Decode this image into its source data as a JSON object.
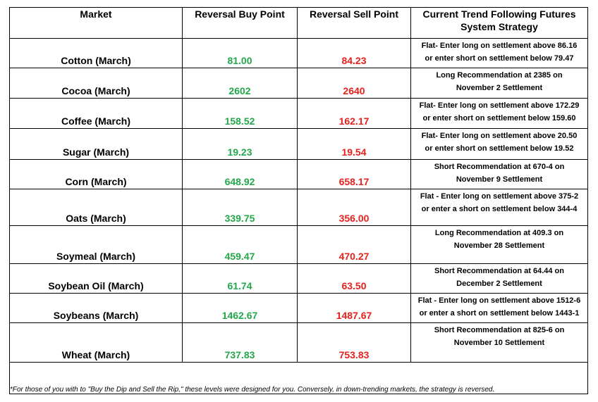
{
  "headers": {
    "market": "Market",
    "buy": "Reversal Buy Point",
    "sell": "Reversal Sell Point",
    "strategy_line1": "Current Trend Following Futures",
    "strategy_line2": "System Strategy"
  },
  "rows": [
    {
      "market": "Cotton (March)",
      "buy": "81.00",
      "sell": "84.23",
      "strategy": [
        "Flat- Enter long on settlement above 86.16",
        "or enter short on settlement below 79.47"
      ]
    },
    {
      "market": "Cocoa (March)",
      "buy": "2602",
      "sell": "2640",
      "strategy": [
        "Long Recommendation at 2385 on",
        "November 2 Settlement"
      ]
    },
    {
      "market": "Coffee (March)",
      "buy": "158.52",
      "sell": "162.17",
      "strategy": [
        "Flat- Enter long on settlement above 172.29",
        "or enter short on settlement below 159.60"
      ]
    },
    {
      "market": "Sugar (March)",
      "buy": "19.23",
      "sell": "19.54",
      "strategy": [
        "Flat- Enter long on settlement above 20.50",
        "or enter short on settlement below 19.52"
      ]
    },
    {
      "market": "Corn (March)",
      "buy": "648.92",
      "sell": "658.17",
      "strategy": [
        "Short Recommendation at 670-4 on",
        "November 9 Settlement"
      ]
    },
    {
      "market": "Oats (March)",
      "buy": "339.75",
      "sell": "356.00",
      "strategy": [
        "Flat - Enter long on settlement above 375-2",
        "or enter a short on settlement below 344-4"
      ]
    },
    {
      "market": "Soymeal (March)",
      "buy": "459.47",
      "sell": "470.27",
      "strategy": [
        "Long Recommendation at 409.3 on",
        "November 28 Settlement"
      ]
    },
    {
      "market": "Soybean Oil (March)",
      "buy": "61.74",
      "sell": "63.50",
      "strategy": [
        "Short Recommendation at 64.44 on",
        "December 2 Settlement"
      ]
    },
    {
      "market": "Soybeans (March)",
      "buy": "1462.67",
      "sell": "1487.67",
      "strategy": [
        "Flat - Enter long on settlement above 1512-6",
        "or enter a short on settlement below 1443-1"
      ]
    },
    {
      "market": "Wheat (March)",
      "buy": "737.83",
      "sell": "753.83",
      "strategy": [
        "Short Recommendation at 825-6 on",
        "November 10 Settlement"
      ]
    }
  ],
  "footnote": "*For those of you with to \"Buy the Dip and Sell the Rip,\" these levels were designed for you. Conversely, in down-trending markets, the strategy is reversed.",
  "colors": {
    "buy": "#22a84a",
    "sell": "#e8201c",
    "border": "#000000"
  }
}
